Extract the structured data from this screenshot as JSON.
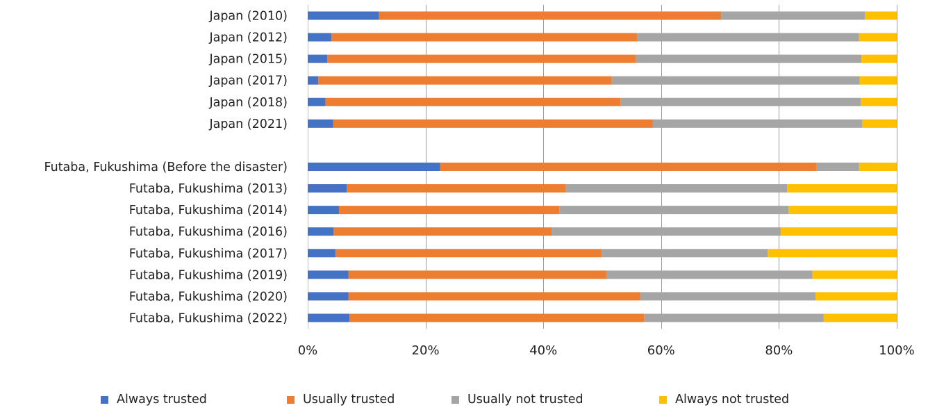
{
  "chart_data": {
    "type": "bar",
    "orientation": "horizontal",
    "stacked": true,
    "percent": true,
    "categories": [
      "Japan (2010)",
      "Japan (2012)",
      "Japan (2015)",
      "Japan (2017)",
      "Japan (2018)",
      "Japan (2021)",
      "",
      "Futaba, Fukushima (Before the disaster)",
      "Futaba, Fukushima (2013)",
      "Futaba, Fukushima (2014)",
      "Futaba, Fukushima (2016)",
      "Futaba, Fukushima (2017)",
      "Futaba, Fukushima (2019)",
      "Futaba, Fukushima (2020)",
      "Futaba, Fukushima (2022)"
    ],
    "series": [
      {
        "name": "Always trusted",
        "color": "#4472C4",
        "values": [
          12.1,
          4.0,
          3.3,
          1.8,
          3.0,
          4.3,
          null,
          22.5,
          6.6,
          5.3,
          4.4,
          4.7,
          6.9,
          6.9,
          7.1
        ]
      },
      {
        "name": "Usually trusted",
        "color": "#ED7D31",
        "values": [
          58.1,
          51.9,
          52.4,
          49.8,
          50.1,
          54.3,
          null,
          63.9,
          37.2,
          37.4,
          37.0,
          45.2,
          43.8,
          49.6,
          50.0
        ]
      },
      {
        "name": "Usually not trusted",
        "color": "#A5A5A5",
        "values": [
          24.4,
          37.7,
          38.3,
          42.1,
          40.8,
          35.5,
          null,
          7.2,
          37.6,
          38.9,
          38.9,
          28.2,
          35.0,
          29.7,
          30.5
        ]
      },
      {
        "name": "Always not trusted",
        "color": "#FFC000",
        "values": [
          5.4,
          6.4,
          6.0,
          6.3,
          6.1,
          5.9,
          null,
          6.4,
          18.6,
          18.4,
          19.7,
          21.9,
          14.3,
          13.8,
          12.4
        ]
      }
    ],
    "xlim": [
      0,
      100
    ],
    "xticks": [
      "0%",
      "20%",
      "40%",
      "60%",
      "80%",
      "100%"
    ],
    "grid": true,
    "legend_position": "bottom"
  }
}
